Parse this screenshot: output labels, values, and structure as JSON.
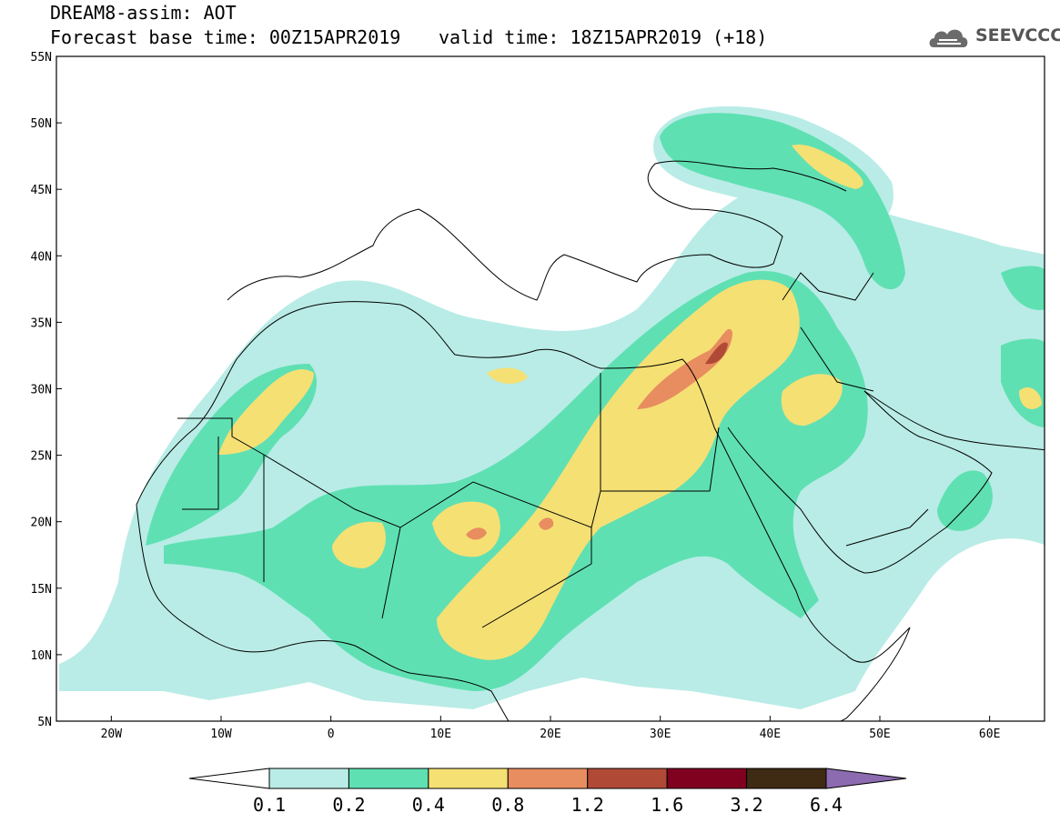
{
  "header": {
    "title": "DREAM8-assim: AOT",
    "base_time": "Forecast base time: 00Z15APR2019",
    "valid_time": "valid time: 18Z15APR2019 (+18)",
    "logo_text": "SEEVCCC",
    "logo_icon": "cloud-icon"
  },
  "map": {
    "lon_range": [
      -25,
      65
    ],
    "lat_range": [
      5,
      55
    ],
    "lon_ticks": [
      {
        "value": -20,
        "label": "20W"
      },
      {
        "value": -10,
        "label": "10W"
      },
      {
        "value": 0,
        "label": "0"
      },
      {
        "value": 10,
        "label": "10E"
      },
      {
        "value": 20,
        "label": "20E"
      },
      {
        "value": 30,
        "label": "30E"
      },
      {
        "value": 40,
        "label": "40E"
      },
      {
        "value": 50,
        "label": "50E"
      },
      {
        "value": 60,
        "label": "60E"
      }
    ],
    "lat_ticks": [
      {
        "value": 5,
        "label": "5N"
      },
      {
        "value": 10,
        "label": "10N"
      },
      {
        "value": 15,
        "label": "15N"
      },
      {
        "value": 20,
        "label": "20N"
      },
      {
        "value": 25,
        "label": "25N"
      },
      {
        "value": 30,
        "label": "30N"
      },
      {
        "value": 35,
        "label": "35N"
      },
      {
        "value": 40,
        "label": "40N"
      },
      {
        "value": 45,
        "label": "45N"
      },
      {
        "value": 50,
        "label": "50N"
      },
      {
        "value": 55,
        "label": "55N"
      }
    ]
  },
  "colorbar": {
    "labels": [
      "0.1",
      "0.2",
      "0.4",
      "0.8",
      "1.2",
      "1.6",
      "3.2",
      "6.4"
    ],
    "colors": [
      "#ffffff",
      "#b9ece6",
      "#5fe0b3",
      "#f5e074",
      "#e88d60",
      "#b04a36",
      "#800020",
      "#3f2a14",
      "#8c6bb0"
    ]
  },
  "fields": {
    "colors": {
      "c1": "#b9ece6",
      "c2": "#5fe0b3",
      "c3": "#f5e074",
      "c4": "#e88d60",
      "c5": "#b04a36"
    }
  }
}
